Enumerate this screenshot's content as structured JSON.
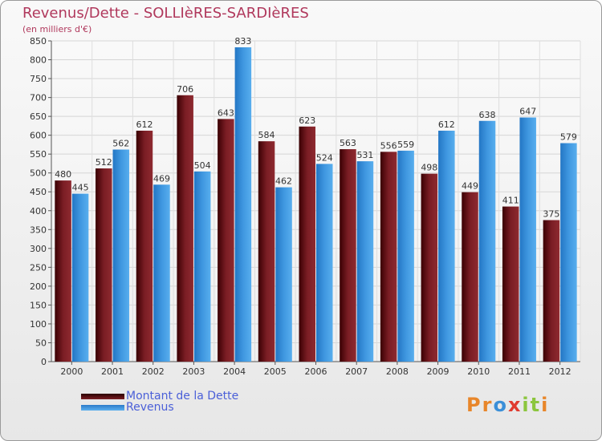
{
  "page": {
    "title": "Revenus/Dette - SOLLIèRES-SARDIèRES",
    "subtitle": "(en milliers d'€)"
  },
  "logo": {
    "letters": [
      "P",
      "r",
      "o",
      "x",
      "i",
      "t",
      "i"
    ],
    "colors": [
      "#e8862a",
      "#e8862a",
      "#3b8fd8",
      "#e03a2f",
      "#8cc63e",
      "#8cc63e",
      "#e8862a"
    ]
  },
  "legend": {
    "dette_label": "Montant de la Dette",
    "revenus_label": "Revenus"
  },
  "chart_data": {
    "type": "bar",
    "title": "Revenus/Dette - SOLLIèRES-SARDIèRES",
    "ylabel": "(en milliers d'€)",
    "xlabel": "",
    "categories": [
      "2000",
      "2001",
      "2002",
      "2003",
      "2004",
      "2005",
      "2006",
      "2007",
      "2008",
      "2009",
      "2010",
      "2011",
      "2012"
    ],
    "series": [
      {
        "name": "Montant de la Dette",
        "color": "#7a1d24",
        "values": [
          480,
          512,
          612,
          706,
          643,
          584,
          623,
          563,
          556,
          498,
          449,
          411,
          375
        ]
      },
      {
        "name": "Revenus",
        "color": "#3f97e0",
        "values": [
          445,
          562,
          469,
          504,
          833,
          462,
          524,
          531,
          559,
          612,
          638,
          647,
          579
        ]
      }
    ],
    "ylim": [
      0,
      850
    ],
    "yticks": [
      0,
      50,
      100,
      150,
      200,
      250,
      300,
      350,
      400,
      450,
      500,
      550,
      600,
      650,
      700,
      750,
      800,
      850
    ],
    "grid": true,
    "legend_position": "bottom-left"
  }
}
